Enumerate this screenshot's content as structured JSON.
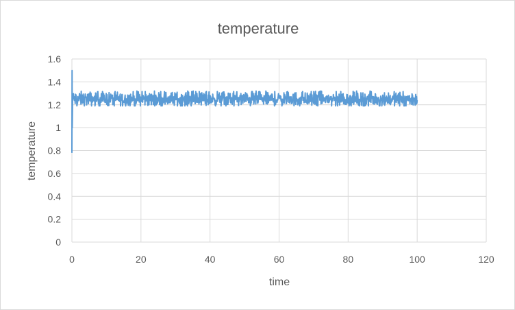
{
  "chart_data": {
    "type": "line",
    "title": "temperature",
    "xlabel": "time",
    "ylabel": "temperature",
    "xlim": [
      0,
      120
    ],
    "ylim": [
      0,
      1.6
    ],
    "xticks": [
      "0",
      "20",
      "40",
      "60",
      "80",
      "100",
      "120"
    ],
    "yticks": [
      "0",
      "0.2",
      "0.4",
      "0.6",
      "0.8",
      "1",
      "1.2",
      "1.4",
      "1.6"
    ],
    "grid": true,
    "legend": "none",
    "series": [
      {
        "color": "#5b9bd5",
        "initial": [
          [
            0,
            0.78
          ],
          [
            0.05,
            1.5
          ],
          [
            0.1,
            1.0
          ],
          [
            0.2,
            1.25
          ]
        ],
        "x_range": [
          0.2,
          100
        ],
        "mean": 1.25,
        "fluctuation_range": [
          1.19,
          1.32
        ]
      }
    ]
  },
  "colors": {
    "line": "#5b9bd5",
    "grid": "#d9d9d9",
    "text": "#595959"
  }
}
